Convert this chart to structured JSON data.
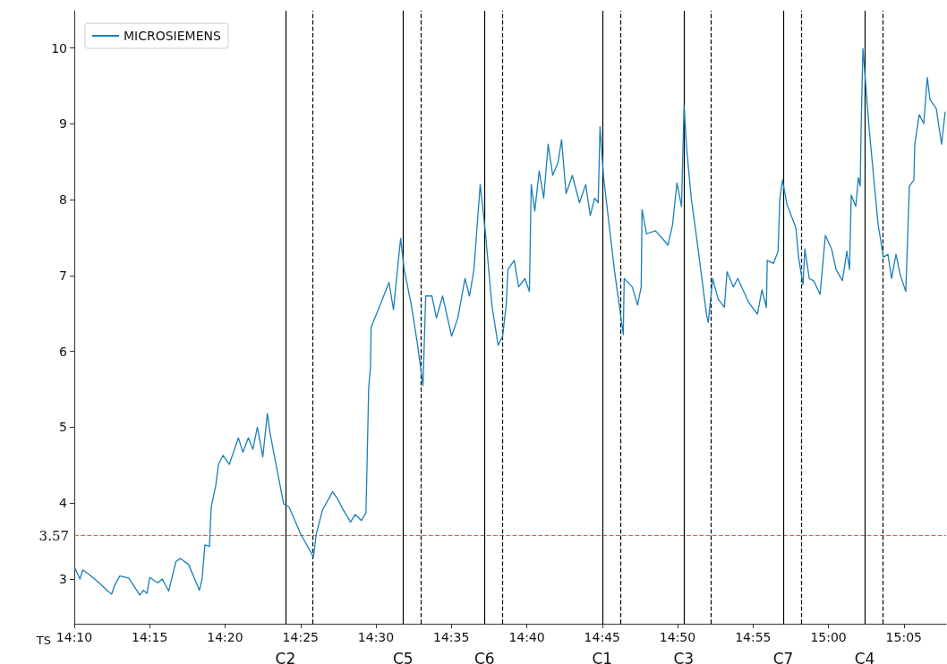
{
  "chart_data": {
    "type": "line",
    "xlabel": "TS",
    "legend": "top left",
    "marker": "none",
    "line_style": "solid",
    "grid": false,
    "xlim": [
      14.1667,
      15.13
    ],
    "ylim": [
      2.41,
      10.49
    ],
    "xticks": [
      {
        "value": 14.1667,
        "label": "14:10"
      },
      {
        "value": 14.25,
        "label": "14:15"
      },
      {
        "value": 14.3333,
        "label": "14:20"
      },
      {
        "value": 14.4167,
        "label": "14:25"
      },
      {
        "value": 14.5,
        "label": "14:30"
      },
      {
        "value": 14.5833,
        "label": "14:35"
      },
      {
        "value": 14.6667,
        "label": "14:40"
      },
      {
        "value": 14.75,
        "label": "14:45"
      },
      {
        "value": 14.8333,
        "label": "14:50"
      },
      {
        "value": 14.9167,
        "label": "14:55"
      },
      {
        "value": 15.0,
        "label": "15:00"
      },
      {
        "value": 15.0833,
        "label": "15:05"
      }
    ],
    "yticks": [
      3,
      4,
      5,
      6,
      7,
      8,
      9,
      10
    ],
    "series": [
      {
        "name": "MICROSIEMENS",
        "color": "#1a7fb8",
        "x": [
          14.167,
          14.173,
          14.176,
          14.184,
          14.194,
          14.203,
          14.208,
          14.211,
          14.217,
          14.227,
          14.239,
          14.243,
          14.247,
          14.25,
          14.259,
          14.264,
          14.271,
          14.279,
          14.284,
          14.293,
          14.305,
          14.308,
          14.311,
          14.316,
          14.318,
          14.323,
          14.326,
          14.331,
          14.338,
          14.348,
          14.353,
          14.359,
          14.364,
          14.369,
          14.375,
          14.38,
          14.383,
          14.398,
          14.404,
          14.417,
          14.431,
          14.434,
          14.441,
          14.452,
          14.457,
          14.464,
          14.472,
          14.477,
          14.484,
          14.489,
          14.492,
          14.494,
          14.4947,
          14.5046,
          14.5144,
          14.5194,
          14.5243,
          14.5273,
          14.5312,
          14.5391,
          14.5461,
          14.552,
          14.555,
          14.5619,
          14.5668,
          14.5737,
          14.5836,
          14.5905,
          14.5984,
          14.6034,
          14.6083,
          14.6152,
          14.6211,
          14.6281,
          14.635,
          14.64,
          14.6439,
          14.6459,
          14.6528,
          14.6577,
          14.6646,
          14.6696,
          14.6716,
          14.6755,
          14.6804,
          14.6854,
          14.6903,
          14.6953,
          14.7012,
          14.7051,
          14.7101,
          14.717,
          14.7249,
          14.7318,
          14.7368,
          14.7417,
          14.7456,
          14.7476,
          14.7516,
          14.7634,
          14.7733,
          14.7743,
          14.7832,
          14.7891,
          14.7931,
          14.794,
          14.799,
          14.8089,
          14.8178,
          14.8227,
          14.8277,
          14.8326,
          14.8376,
          14.8405,
          14.8435,
          14.8484,
          14.8554,
          14.8652,
          14.8672,
          14.8721,
          14.8781,
          14.885,
          14.888,
          14.8949,
          14.8998,
          14.9117,
          14.9215,
          14.9265,
          14.9314,
          14.9324,
          14.9393,
          14.9443,
          14.9462,
          14.9492,
          14.9541,
          14.964,
          14.967,
          14.9719,
          14.9739,
          14.9788,
          14.9837,
          14.9907,
          14.9966,
          15.0035,
          15.0084,
          15.0154,
          15.0203,
          15.0233,
          15.0252,
          15.0302,
          15.0331,
          15.0351,
          15.0361,
          15.0381,
          15.045,
          15.0549,
          15.0608,
          15.0657,
          15.0697,
          15.0746,
          15.0795,
          15.0855,
          15.0894,
          15.0944,
          15.0954,
          15.1003,
          15.1053,
          15.1092,
          15.1122,
          15.1191,
          15.125,
          15.129
        ],
        "values": [
          3.15,
          3.0,
          3.12,
          3.05,
          2.95,
          2.85,
          2.8,
          2.91,
          3.04,
          3.01,
          2.79,
          2.85,
          2.81,
          3.02,
          2.95,
          3.0,
          2.84,
          3.23,
          3.27,
          3.19,
          2.85,
          3.01,
          3.45,
          3.43,
          3.95,
          4.23,
          4.51,
          4.63,
          4.51,
          4.86,
          4.67,
          4.86,
          4.71,
          5.0,
          4.61,
          5.18,
          4.92,
          3.99,
          3.95,
          3.59,
          3.29,
          3.59,
          3.91,
          4.15,
          4.07,
          3.91,
          3.75,
          3.85,
          3.77,
          3.87,
          5.52,
          5.8,
          6.32,
          6.61,
          6.91,
          6.55,
          7.14,
          7.49,
          7.08,
          6.61,
          6.08,
          5.55,
          6.73,
          6.73,
          6.44,
          6.73,
          6.2,
          6.44,
          6.96,
          6.73,
          7.08,
          8.2,
          7.55,
          6.61,
          6.08,
          6.2,
          6.61,
          7.08,
          7.2,
          6.85,
          6.96,
          6.79,
          8.2,
          7.85,
          8.38,
          8.02,
          8.73,
          8.32,
          8.49,
          8.79,
          8.08,
          8.32,
          7.96,
          8.2,
          7.79,
          8.02,
          7.96,
          8.96,
          8.29,
          7.08,
          6.22,
          6.96,
          6.85,
          6.61,
          6.85,
          7.87,
          7.55,
          7.59,
          7.47,
          7.4,
          7.67,
          8.22,
          7.91,
          9.24,
          8.65,
          8.02,
          7.4,
          6.49,
          6.38,
          6.96,
          6.69,
          6.58,
          7.05,
          6.85,
          6.96,
          6.65,
          6.49,
          6.81,
          6.58,
          7.2,
          7.16,
          7.32,
          7.99,
          8.26,
          7.94,
          7.63,
          7.24,
          6.88,
          7.35,
          6.96,
          6.93,
          6.75,
          7.53,
          7.35,
          7.08,
          6.93,
          7.32,
          7.08,
          8.06,
          7.91,
          8.29,
          8.18,
          8.96,
          9.99,
          8.93,
          7.67,
          7.24,
          7.28,
          6.96,
          7.28,
          7.0,
          6.79,
          8.18,
          8.26,
          8.73,
          9.12,
          9.0,
          9.61,
          9.32,
          9.2,
          8.73,
          9.16
        ]
      }
    ],
    "ref_lines": [
      {
        "axis": "y",
        "value": 3.57,
        "label": "3.57",
        "color": "#e8533a",
        "line_style": "dashed"
      },
      {
        "axis": "x",
        "value": 14.4,
        "label": "C2",
        "color": "#000000",
        "line_style": "solid"
      },
      {
        "axis": "x",
        "value": 14.4315,
        "color": "#000000",
        "line_style": "dashed"
      },
      {
        "axis": "x",
        "value": 14.5273,
        "label": "C5",
        "color": "#000000",
        "line_style": "solid"
      },
      {
        "axis": "x",
        "value": 14.552,
        "color": "#000000",
        "line_style": "dashed"
      },
      {
        "axis": "x",
        "value": 14.62,
        "label": "C6",
        "color": "#000000",
        "line_style": "solid"
      },
      {
        "axis": "x",
        "value": 14.6419,
        "color": "#000000",
        "line_style": "dashed"
      },
      {
        "axis": "x",
        "value": 14.7475,
        "label": "C1",
        "color": "#000000",
        "line_style": "solid"
      },
      {
        "axis": "x",
        "value": 14.7733,
        "color": "#000000",
        "line_style": "dashed"
      },
      {
        "axis": "x",
        "value": 14.8405,
        "label": "C3",
        "color": "#000000",
        "line_style": "solid"
      },
      {
        "axis": "x",
        "value": 14.8662,
        "color": "#000000",
        "line_style": "dashed"
      },
      {
        "axis": "x",
        "value": 14.9472,
        "label": "C7",
        "color": "#000000",
        "line_style": "solid"
      },
      {
        "axis": "x",
        "value": 14.9718,
        "color": "#000000",
        "line_style": "dashed"
      },
      {
        "axis": "x",
        "value": 15.037,
        "label": "C4",
        "color": "#000000",
        "line_style": "solid"
      },
      {
        "axis": "x",
        "value": 15.0627,
        "color": "#000000",
        "line_style": "dashed"
      }
    ]
  }
}
